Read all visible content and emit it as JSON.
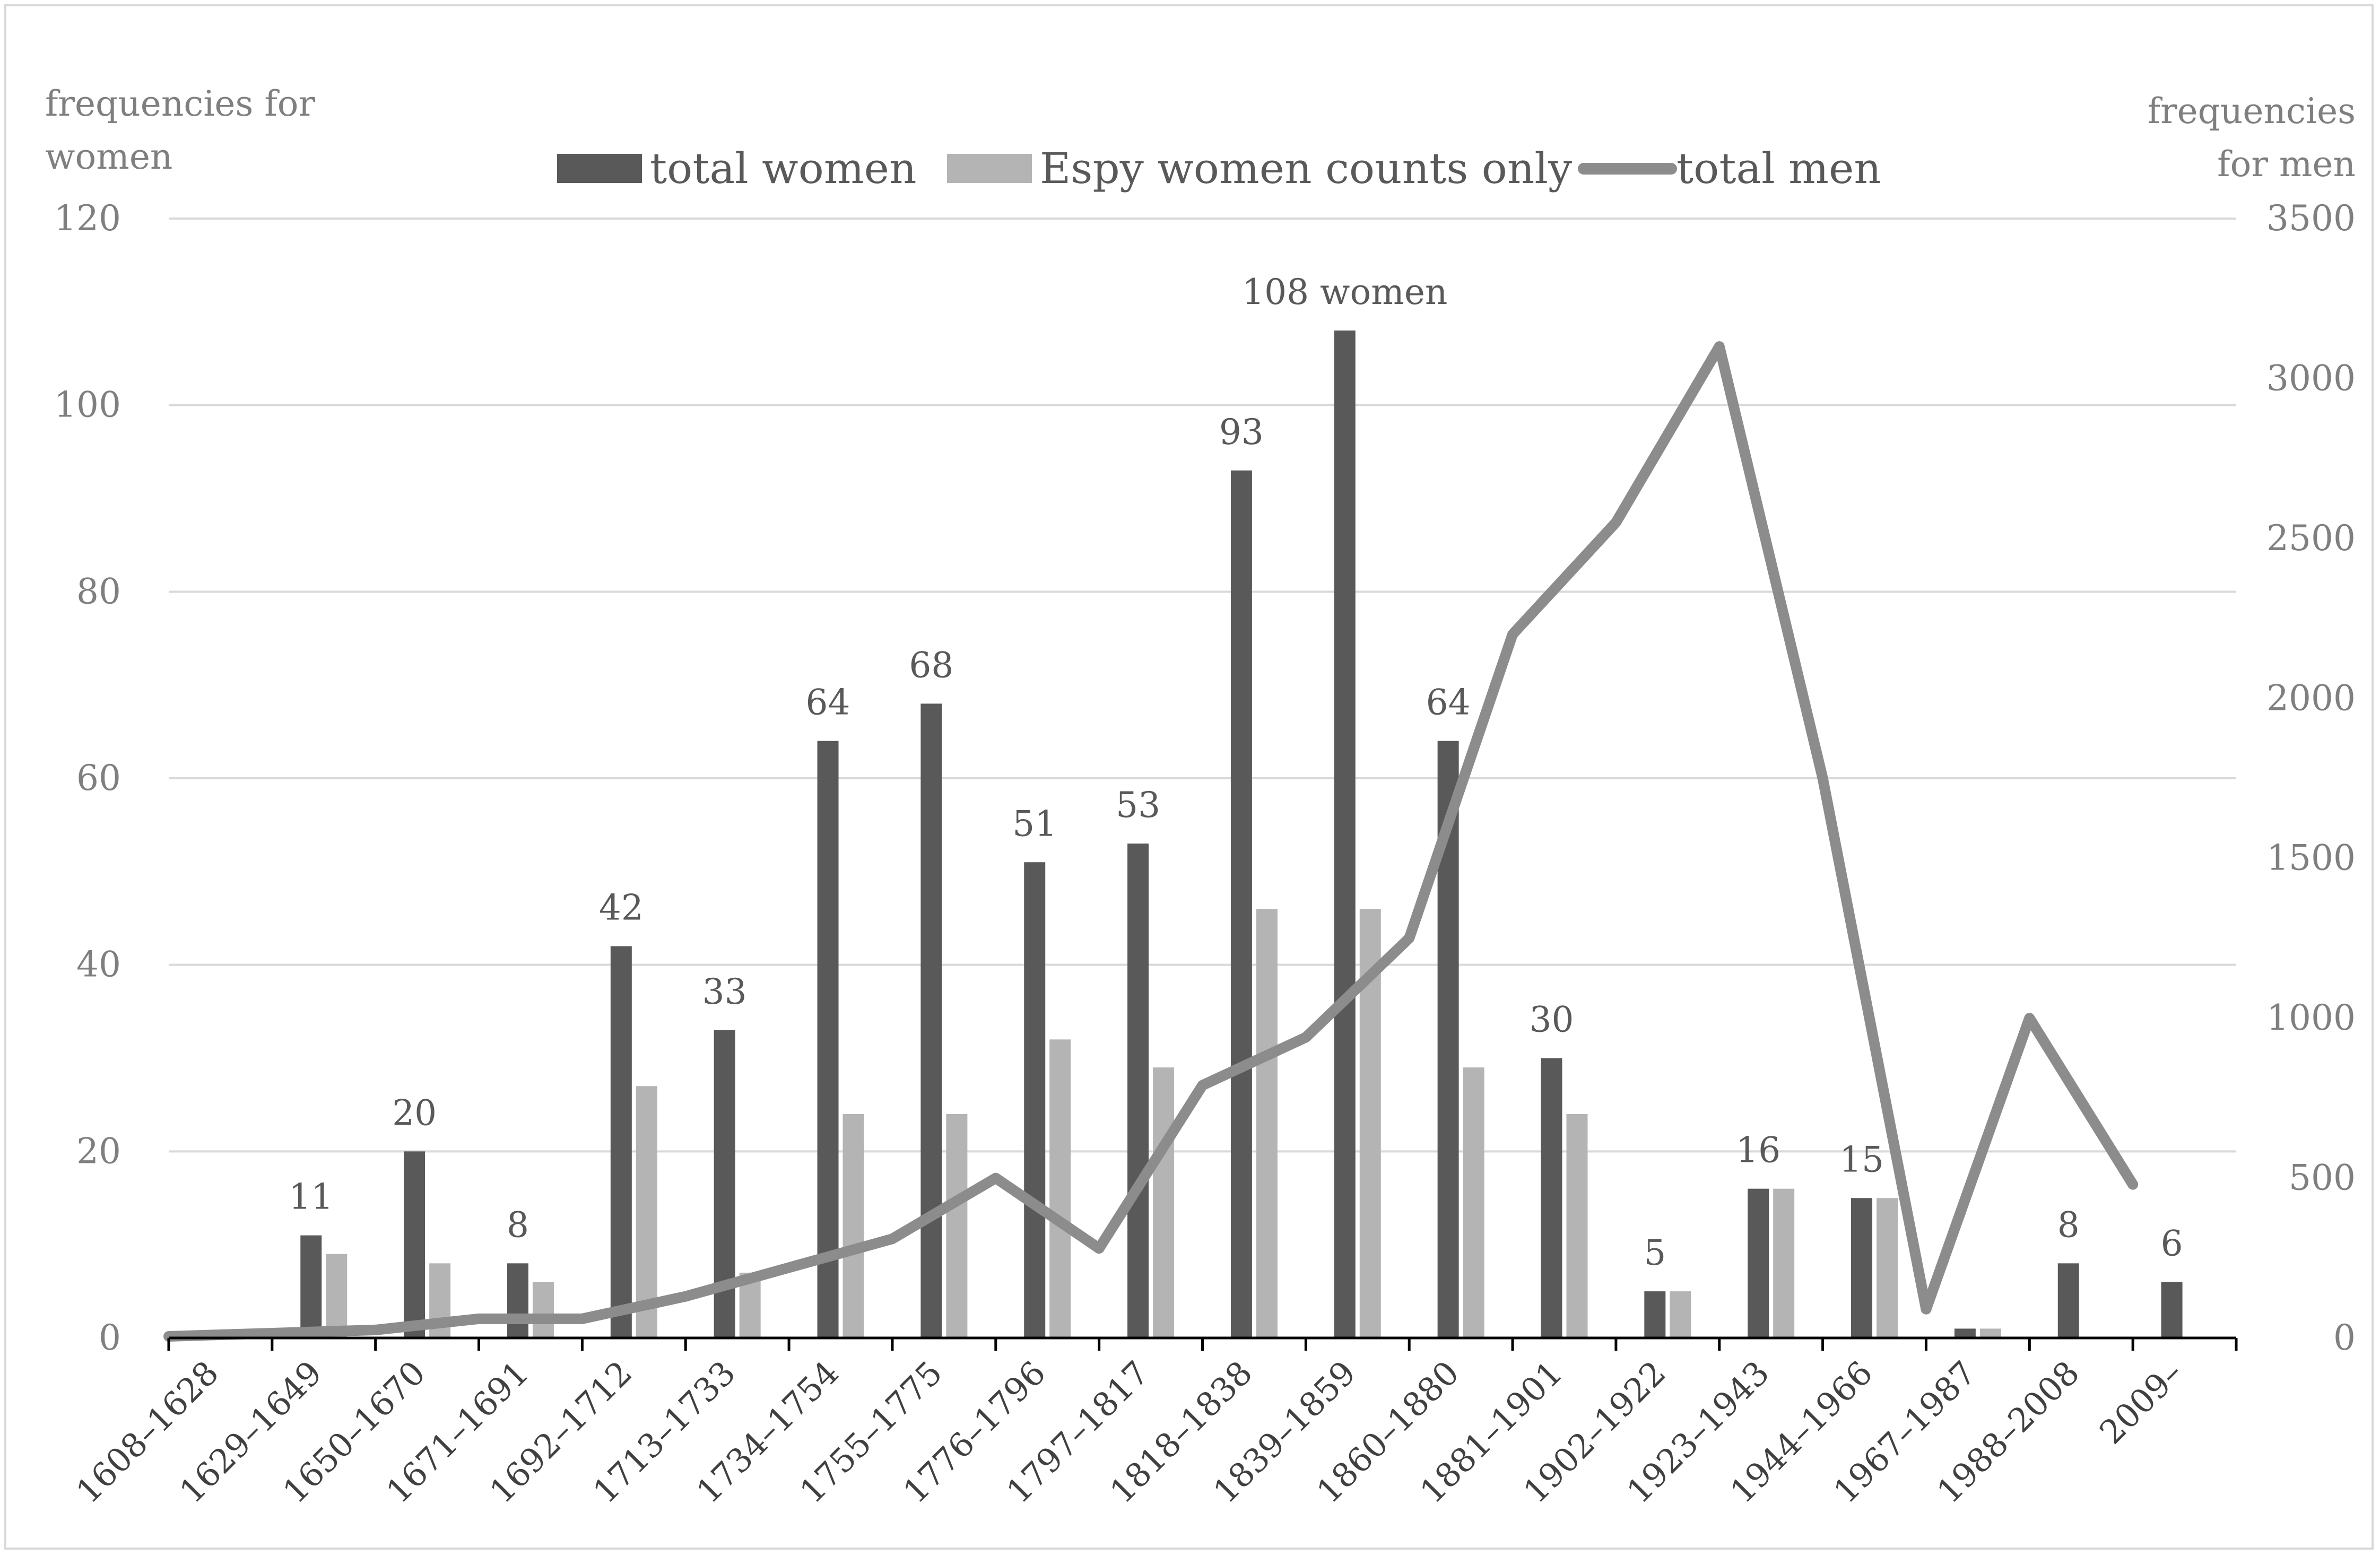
{
  "chart_data": {
    "type": "bar",
    "categories": [
      "1608–1628",
      "1629–1649",
      "1650–1670",
      "1671–1691",
      "1692–1712",
      "1713–1733",
      "1734–1754",
      "1755–1775",
      "1776–1796",
      "1797–1817",
      "1818–1838",
      "1839–1859",
      "1860–1880",
      "1881–1901",
      "1902–1922",
      "1923–1943",
      "1944–1966",
      "1967–1987",
      "1988–2008",
      "2009–"
    ],
    "series": [
      {
        "name": "total women",
        "type": "bar",
        "axis": "left",
        "color": "#595959",
        "values": [
          0,
          11,
          20,
          8,
          42,
          33,
          64,
          68,
          51,
          53,
          93,
          108,
          64,
          30,
          5,
          16,
          15,
          1,
          8,
          6
        ]
      },
      {
        "name": "Espy women counts only",
        "type": "bar",
        "axis": "left",
        "color": "#b4b4b4",
        "values": [
          0,
          9,
          8,
          6,
          27,
          7,
          24,
          24,
          32,
          29,
          46,
          46,
          29,
          24,
          5,
          16,
          15,
          1,
          0,
          0
        ]
      },
      {
        "name": "total men",
        "type": "line",
        "axis": "right",
        "color": "#8c8c8c",
        "values": [
          5,
          15,
          25,
          60,
          60,
          130,
          220,
          310,
          500,
          280,
          790,
          940,
          1250,
          2200,
          2550,
          3100,
          1750,
          90,
          1000,
          480
        ]
      }
    ],
    "data_labels": [
      "",
      "11",
      "20",
      "8",
      "42",
      "33",
      "64",
      "68",
      "51",
      "53",
      "93",
      "108 women",
      "64",
      "30",
      "5",
      "16",
      "15",
      "",
      "8",
      "6"
    ],
    "ylabel": "frequencies for women",
    "y2label": "frequencies for men",
    "ylim": [
      0,
      120
    ],
    "y2lim": [
      0,
      3500
    ],
    "yticks": [
      0,
      20,
      40,
      60,
      80,
      100,
      120
    ],
    "y2ticks": [
      0,
      500,
      1000,
      1500,
      2000,
      2500,
      3000,
      3500
    ],
    "grid": true,
    "legend_position": "top"
  }
}
